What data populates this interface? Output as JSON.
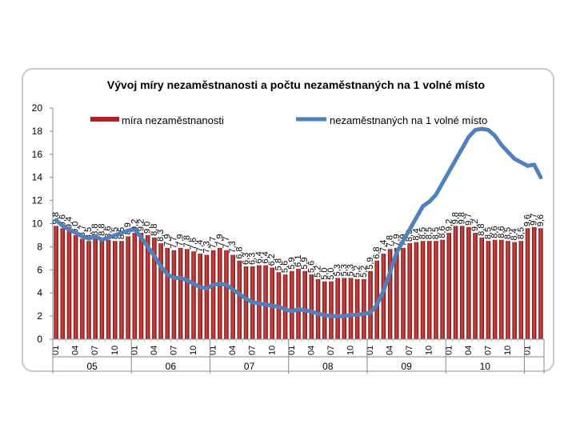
{
  "chart_data": {
    "type": "bar",
    "title": "Vývoj míry nezaměstnanosti a počtu nezaměstnaných na 1 volné místo",
    "xlabel": "",
    "ylabel": "",
    "ylim": [
      0,
      20
    ],
    "yticks": [
      "0",
      "2",
      "4",
      "6",
      "8",
      "10",
      "12",
      "14",
      "16",
      "18",
      "20"
    ],
    "grid": false,
    "legend": "top",
    "month_labels": [
      "01",
      "04",
      "07",
      "10"
    ],
    "years": [
      "05",
      "06",
      "07",
      "08",
      "09",
      "10"
    ],
    "trailing_month_label": "01",
    "series": [
      {
        "name": "míra nezaměstnanosti",
        "kind": "bar",
        "color": "#b22222",
        "values": [
          9.8,
          9.6,
          9.4,
          9.0,
          8.7,
          8.5,
          8.8,
          8.8,
          8.6,
          8.5,
          8.5,
          8.9,
          9.2,
          9.2,
          9.0,
          8.8,
          8.3,
          7.9,
          7.7,
          7.9,
          7.8,
          7.6,
          7.4,
          7.3,
          7.7,
          7.9,
          7.7,
          7.3,
          6.8,
          6.3,
          6.3,
          6.4,
          6.4,
          6.2,
          5.8,
          5.6,
          5.9,
          6.1,
          5.9,
          5.6,
          5.2,
          5.0,
          5.0,
          5.3,
          5.3,
          5.3,
          5.2,
          5.2,
          5.9,
          6.8,
          7.4,
          7.8,
          7.9,
          7.9,
          8.3,
          8.4,
          8.5,
          8.5,
          8.5,
          8.6,
          9.2,
          9.8,
          9.8,
          9.7,
          9.2,
          8.8,
          8.5,
          8.6,
          8.6,
          8.5,
          8.4,
          8.5,
          9.6,
          9.7,
          9.6
        ],
        "labels": [
          "9,8",
          "9,6",
          "9,4",
          "9,0",
          "8,7",
          "8,5",
          "8,8",
          "8,8",
          "8,6",
          "8,5",
          "8,5",
          "8,9",
          "9,2",
          "9,2",
          "9,0",
          "8,8",
          "8,3",
          "7,9",
          "7,7",
          "7,9",
          "7,8",
          "7,6",
          "7,4",
          "7,3",
          "7,7",
          "7,9",
          "7,7",
          "7,3",
          "6,8",
          "6,3",
          "6,3",
          "6,4",
          "6,4",
          "6,2",
          "5,8",
          "5,6",
          "5,9",
          "6,1",
          "5,9",
          "5,6",
          "5,2",
          "5,0",
          "5,0",
          "5,3",
          "5,3",
          "5,3",
          "5,2",
          "5,2",
          "5,9",
          "6,8",
          "7,4",
          "7,8",
          "7,9",
          "7,9",
          "8,3",
          "8,4",
          "8,5",
          "8,5",
          "8,5",
          "8,6",
          "9,2",
          "9,8",
          "9,8",
          "9,7",
          "9,2",
          "8,8",
          "8,5",
          "8,6",
          "8,6",
          "8,5",
          "8,4",
          "8,5",
          "9,6",
          "9,7",
          "9,6"
        ]
      },
      {
        "name": "nezaměstnaných na 1 volné místo",
        "kind": "line",
        "color": "#4f81bd",
        "values": [
          10.3,
          9.8,
          9.5,
          9.2,
          8.9,
          8.7,
          8.9,
          8.6,
          8.8,
          9.0,
          9.2,
          9.4,
          9.5,
          8.8,
          8.0,
          7.2,
          6.3,
          5.6,
          5.3,
          5.3,
          5.1,
          4.8,
          4.5,
          4.4,
          4.7,
          4.8,
          4.7,
          4.3,
          3.9,
          3.5,
          3.2,
          3.1,
          3.0,
          2.9,
          2.8,
          2.6,
          2.4,
          2.6,
          2.5,
          2.4,
          2.2,
          2.1,
          2.0,
          2.0,
          2.0,
          2.1,
          2.1,
          2.2,
          2.3,
          3.0,
          4.2,
          5.8,
          7.5,
          8.5,
          9.5,
          10.5,
          11.5,
          11.9,
          12.5,
          13.5,
          14.5,
          15.5,
          16.5,
          17.5,
          18.1,
          18.2,
          18.1,
          17.6,
          16.8,
          16.2,
          15.6,
          15.3,
          15.0,
          15.1,
          14.0
        ]
      }
    ]
  }
}
